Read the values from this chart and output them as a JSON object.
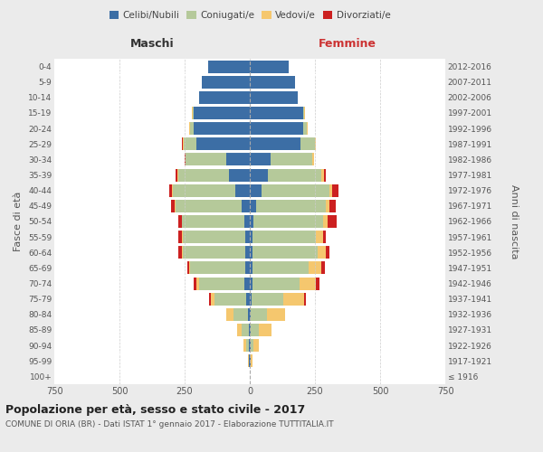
{
  "age_groups": [
    "100+",
    "95-99",
    "90-94",
    "85-89",
    "80-84",
    "75-79",
    "70-74",
    "65-69",
    "60-64",
    "55-59",
    "50-54",
    "45-49",
    "40-44",
    "35-39",
    "30-34",
    "25-29",
    "20-24",
    "15-19",
    "10-14",
    "5-9",
    "0-4"
  ],
  "birth_years": [
    "≤ 1916",
    "1917-1921",
    "1922-1926",
    "1927-1931",
    "1932-1936",
    "1937-1941",
    "1942-1946",
    "1947-1951",
    "1952-1956",
    "1957-1961",
    "1962-1966",
    "1967-1971",
    "1972-1976",
    "1977-1981",
    "1982-1986",
    "1987-1991",
    "1992-1996",
    "1997-2001",
    "2002-2006",
    "2007-2011",
    "2012-2016"
  ],
  "male": {
    "celibe": [
      0,
      2,
      3,
      5,
      8,
      15,
      20,
      18,
      18,
      18,
      20,
      30,
      55,
      80,
      90,
      205,
      215,
      215,
      195,
      185,
      160
    ],
    "coniugato": [
      0,
      3,
      10,
      25,
      55,
      120,
      175,
      210,
      240,
      240,
      240,
      255,
      240,
      195,
      155,
      50,
      15,
      5,
      0,
      0,
      0
    ],
    "vedovo": [
      0,
      2,
      10,
      20,
      28,
      15,
      10,
      5,
      3,
      3,
      2,
      2,
      2,
      2,
      2,
      2,
      1,
      1,
      0,
      0,
      0
    ],
    "divorziato": [
      0,
      0,
      0,
      0,
      0,
      5,
      10,
      8,
      12,
      12,
      12,
      15,
      12,
      8,
      3,
      2,
      1,
      0,
      0,
      0,
      0
    ]
  },
  "female": {
    "nubile": [
      0,
      2,
      3,
      5,
      5,
      8,
      10,
      10,
      10,
      10,
      15,
      25,
      45,
      70,
      80,
      195,
      205,
      205,
      185,
      175,
      150
    ],
    "coniugata": [
      0,
      3,
      12,
      30,
      60,
      120,
      180,
      215,
      250,
      245,
      265,
      265,
      260,
      205,
      160,
      55,
      15,
      5,
      0,
      0,
      0
    ],
    "vedova": [
      0,
      5,
      20,
      50,
      70,
      80,
      65,
      50,
      30,
      25,
      20,
      15,
      12,
      8,
      5,
      3,
      1,
      1,
      0,
      0,
      0
    ],
    "divorziata": [
      0,
      0,
      0,
      0,
      2,
      8,
      12,
      12,
      15,
      12,
      35,
      25,
      25,
      8,
      3,
      2,
      1,
      0,
      0,
      0,
      0
    ]
  },
  "colors": {
    "celibe": "#3c6ea5",
    "coniugato": "#b5c99a",
    "vedovo": "#f5c76e",
    "divorziato": "#cc2020"
  },
  "xlim": 750,
  "title": "Popolazione per età, sesso e stato civile - 2017",
  "subtitle": "COMUNE DI ORIA (BR) - Dati ISTAT 1° gennaio 2017 - Elaborazione TUTTITALIA.IT",
  "ylabel_left": "Fasce di età",
  "ylabel_right": "Anni di nascita",
  "label_maschi": "Maschi",
  "label_femmine": "Femmine",
  "legend_labels": [
    "Celibi/Nubili",
    "Coniugati/e",
    "Vedovi/e",
    "Divorziati/e"
  ],
  "bg_color": "#ebebeb",
  "plot_bg": "#ffffff"
}
